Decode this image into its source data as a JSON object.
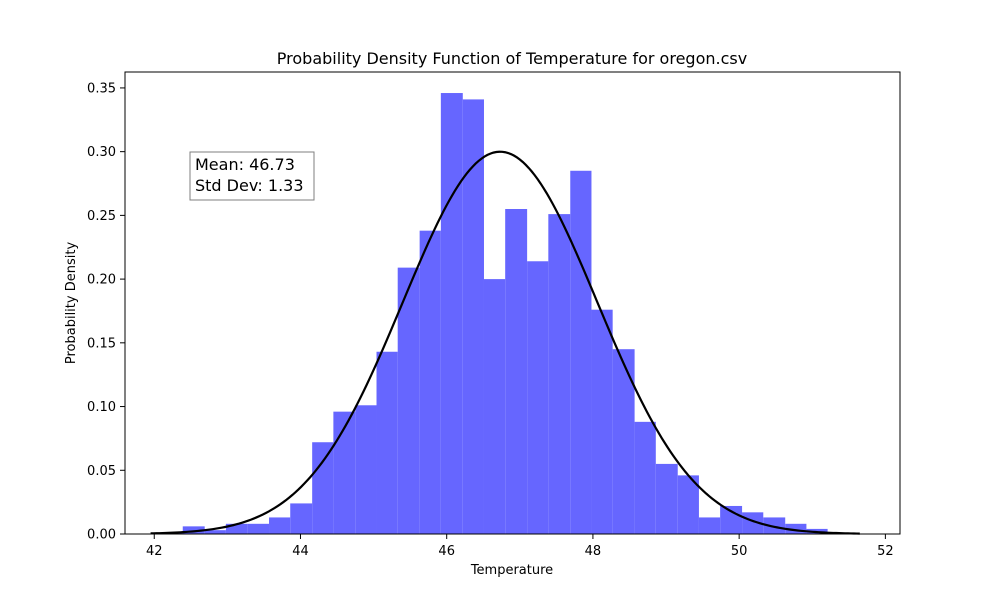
{
  "chart_data": {
    "type": "bar",
    "title": "Probability Density Function of Temperature for oregon.csv",
    "xlabel": "Temperature",
    "ylabel": "Probability Density",
    "xlim": [
      41.6,
      52.2
    ],
    "ylim": [
      0,
      0.3625
    ],
    "xticks": [
      42,
      44,
      46,
      48,
      50,
      52
    ],
    "yticks": [
      0.0,
      0.05,
      0.1,
      0.15,
      0.2,
      0.25,
      0.3,
      0.35
    ],
    "ytick_labels": [
      "0.00",
      "0.05",
      "0.10",
      "0.15",
      "0.20",
      "0.25",
      "0.30",
      "0.35"
    ],
    "bar_color": "#6666ff",
    "curve_color": "#000000",
    "histogram": {
      "bin_edges": [
        42.1,
        42.39,
        42.69,
        42.98,
        43.28,
        43.57,
        43.86,
        44.16,
        44.45,
        44.75,
        45.04,
        45.33,
        45.63,
        45.92,
        46.22,
        46.51,
        46.8,
        47.1,
        47.39,
        47.69,
        47.98,
        48.27,
        48.57,
        48.86,
        49.16,
        49.45,
        49.74,
        50.04,
        50.33,
        50.63,
        50.92,
        51.21
      ],
      "densities": [
        0.001,
        0.006,
        0.003,
        0.008,
        0.008,
        0.013,
        0.024,
        0.072,
        0.096,
        0.101,
        0.143,
        0.209,
        0.238,
        0.346,
        0.341,
        0.2,
        0.255,
        0.214,
        0.251,
        0.285,
        0.176,
        0.145,
        0.088,
        0.055,
        0.046,
        0.013,
        0.022,
        0.017,
        0.013,
        0.008,
        0.004
      ]
    },
    "pdf_curve": {
      "name": "",
      "mean": 46.73,
      "std": 1.33,
      "x_range": [
        41.95,
        51.65
      ]
    },
    "annotation": {
      "line1": "Mean: 46.73",
      "line2": "Std Dev: 1.33"
    }
  }
}
